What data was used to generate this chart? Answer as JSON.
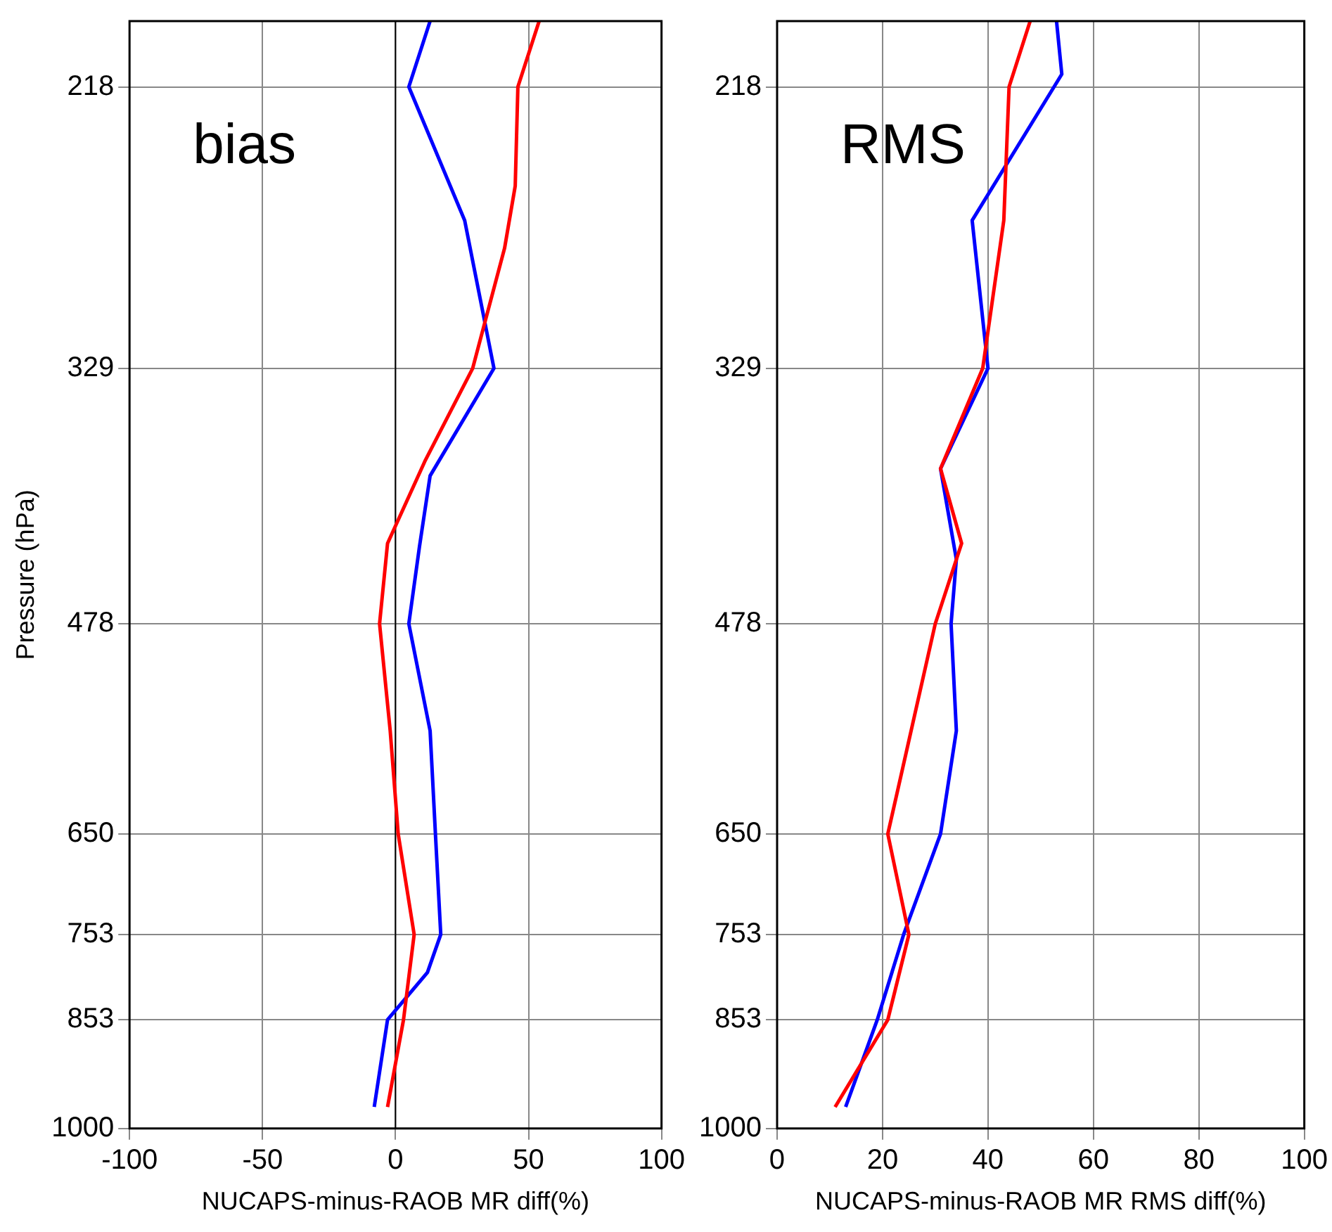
{
  "chart_data": [
    {
      "type": "line",
      "annotations": [
        "bias"
      ],
      "xlabel": "NUCAPS-minus-RAOB MR diff(%)",
      "ylabel": "Pressure (hPa)",
      "log": "y",
      "grid": true,
      "xlim": [
        -100,
        100
      ],
      "xticks": [
        -100,
        -50,
        0,
        50,
        100
      ],
      "ylim": [
        1000,
        198
      ],
      "yticks": [
        218,
        329,
        478,
        650,
        753,
        853,
        1000
      ],
      "ref_lines": [
        {
          "axis": "x",
          "value": 0,
          "color": "#000000"
        }
      ],
      "series": [
        {
          "color": "#ff0000",
          "x": [
            54,
            46,
            45,
            41,
            29,
            11,
            -3,
            -6,
            -2,
            1,
            7,
            3,
            -3
          ],
          "values": [
            198,
            218,
            252,
            276,
            329,
            377,
            425,
            478,
            559,
            650,
            753,
            853,
            969
          ]
        },
        {
          "color": "#0000ff",
          "x": [
            13,
            5,
            26,
            37,
            13,
            9,
            5,
            13,
            15,
            17,
            12,
            -3,
            -8
          ],
          "values": [
            198,
            218,
            265,
            329,
            385,
            427,
            478,
            559,
            650,
            753,
            796,
            853,
            969
          ]
        }
      ]
    },
    {
      "type": "line",
      "annotations": [
        "RMS"
      ],
      "xlabel": "NUCAPS-minus-RAOB MR RMS diff(%)",
      "log": "y",
      "grid": true,
      "xlim": [
        0,
        100
      ],
      "xticks": [
        0,
        20,
        40,
        60,
        80,
        100
      ],
      "ylim": [
        1000,
        198
      ],
      "yticks": [
        218,
        329,
        478,
        650,
        753,
        853,
        1000
      ],
      "series": [
        {
          "color": "#ff0000",
          "x": [
            48,
            44,
            43,
            39,
            31,
            35,
            30,
            21,
            25,
            21,
            11
          ],
          "values": [
            198,
            218,
            265,
            329,
            381,
            425,
            478,
            650,
            753,
            853,
            969
          ]
        },
        {
          "color": "#0000ff",
          "x": [
            53,
            54,
            37,
            40,
            31,
            34,
            33,
            34,
            31,
            24,
            19,
            13
          ],
          "values": [
            198,
            214,
            265,
            329,
            381,
            435,
            478,
            559,
            650,
            753,
            853,
            969
          ]
        }
      ]
    }
  ]
}
